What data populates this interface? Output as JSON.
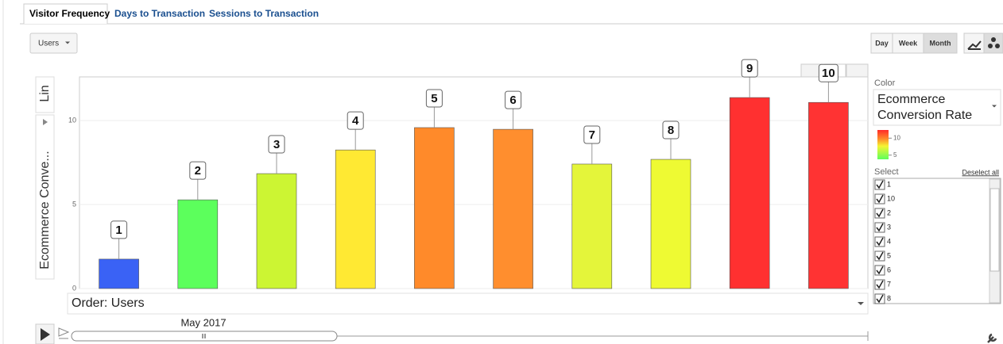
{
  "tabs": [
    "Visitor Frequency",
    "Days to Transaction",
    "Sessions to Transaction"
  ],
  "metric_selector": "Users",
  "granularity": [
    "Day",
    "Week",
    "Month"
  ],
  "chart_data": {
    "type": "bar",
    "chart_type_label": "Lin",
    "y_label": "Ecommerce Conve...",
    "categories": [
      "1",
      "2",
      "3",
      "4",
      "5",
      "6",
      "7",
      "8",
      "9",
      "10"
    ],
    "values": [
      1.75,
      5.28,
      6.84,
      8.25,
      9.58,
      9.48,
      7.41,
      7.69,
      11.37,
      11.08
    ],
    "colors": [
      "#3a62f5",
      "#5cff5c",
      "#ccf533",
      "#ffe933",
      "#ff8a2a",
      "#ff8e2e",
      "#e4f53a",
      "#eefa33",
      "#ff3030",
      "#ff3333"
    ],
    "ylim": [
      0,
      12.6
    ],
    "yticks": [
      0,
      5,
      10
    ],
    "grid": true,
    "color_label": "Color",
    "color_metric": [
      "Ecommerce",
      "Conversion Rate"
    ],
    "color_scale_ticks": [
      10,
      5
    ],
    "select_label": "Select",
    "deselect_label": "Deselect all",
    "select_items": [
      "1",
      "10",
      "2",
      "3",
      "4",
      "5",
      "6",
      "7",
      "8"
    ],
    "order_label": "Order: Users",
    "time_label": "May 2017"
  }
}
